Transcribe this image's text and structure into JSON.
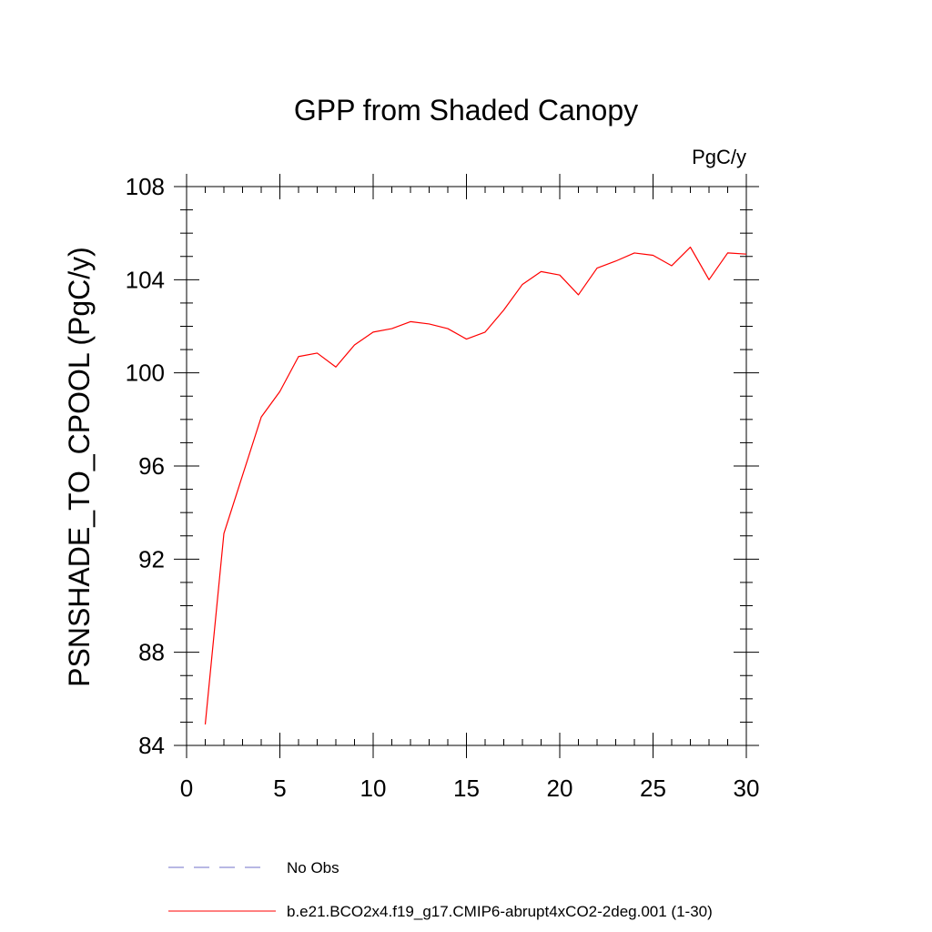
{
  "chart_data": {
    "type": "line",
    "title": "GPP from Shaded Canopy",
    "units_label": "PgC/y",
    "xlabel": "",
    "ylabel": "PSNSHADE_TO_CPOOL  (PgC/y)",
    "xlim": [
      0,
      30
    ],
    "ylim": [
      84,
      108
    ],
    "x_ticks": [
      0,
      5,
      10,
      15,
      20,
      25,
      30
    ],
    "y_ticks": [
      84,
      88,
      92,
      96,
      100,
      104,
      108
    ],
    "x_tick_labels": [
      "0",
      "5",
      "10",
      "15",
      "20",
      "25",
      "30"
    ],
    "y_tick_labels": [
      "84",
      "88",
      "92",
      "96",
      "100",
      "104",
      "108"
    ],
    "grid": false,
    "legend_position": "bottom-left",
    "series": [
      {
        "name": "b.e21.BCO2x4.f19_g17.CMIP6-abrupt4xCO2-2deg.001 (1-30)",
        "color": "#ff0000",
        "style": "solid",
        "x": [
          1,
          2,
          3,
          4,
          5,
          6,
          7,
          8,
          9,
          10,
          11,
          12,
          13,
          14,
          15,
          16,
          17,
          18,
          19,
          20,
          21,
          22,
          23,
          24,
          25,
          26,
          27,
          28,
          29,
          30
        ],
        "values": [
          84.9,
          93.1,
          95.6,
          98.1,
          99.2,
          100.7,
          100.85,
          100.25,
          101.2,
          101.75,
          101.9,
          102.2,
          102.1,
          101.9,
          101.45,
          101.75,
          102.7,
          103.8,
          104.35,
          104.2,
          103.35,
          104.5,
          104.8,
          105.15,
          105.05,
          104.6,
          105.4,
          104.0,
          105.15,
          105.1
        ]
      }
    ],
    "reference": {
      "name": "No Obs",
      "color": "#7070c8",
      "style": "dashed"
    }
  }
}
